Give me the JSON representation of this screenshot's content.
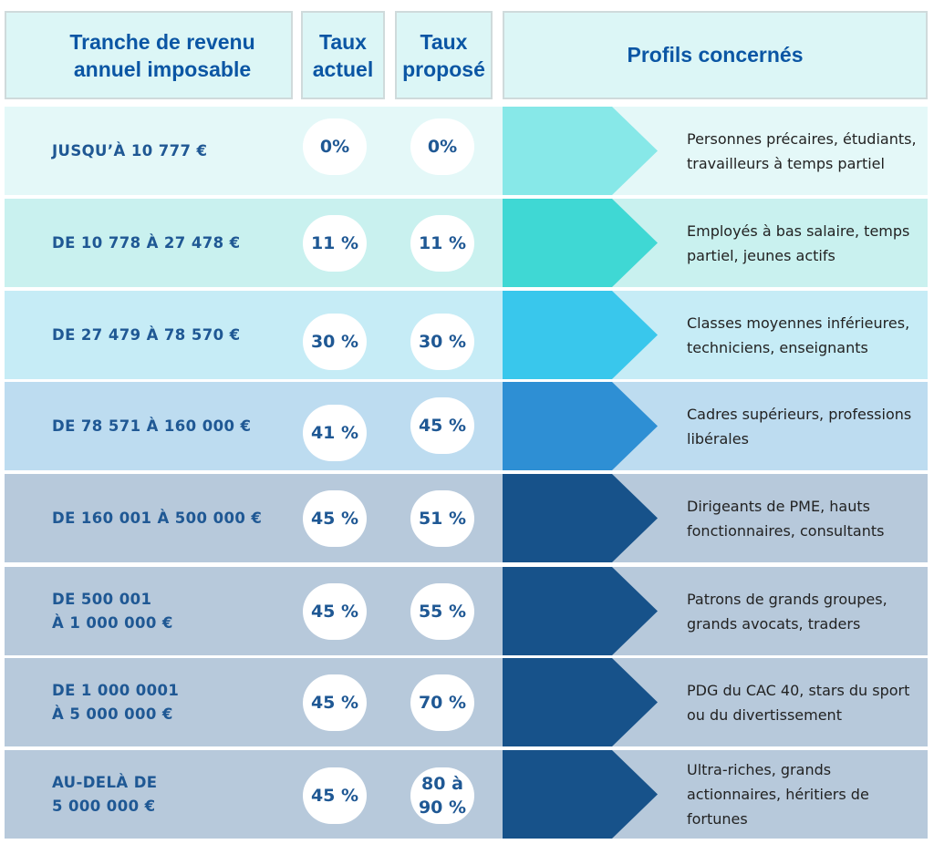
{
  "header": {
    "tranche": "Tranche de revenu\nannuel imposable",
    "taux_actuel": "Taux\nactuel",
    "taux_propose": "Taux\nproposé",
    "profils": "Profils concernés"
  },
  "rows": [
    {
      "tranche": "JUSQU’À 10 777 €",
      "actuel": "0%",
      "propose": "0%",
      "profil": "Personnes précaires, étudiants, travailleurs à temps partiel",
      "row_bg": "#e4f8f8",
      "arrow_color": "#87e8e8"
    },
    {
      "tranche": "DE 10 778 À 27 478 €",
      "actuel": "11 %",
      "propose": "11 %",
      "profil": "Employés à bas salaire, temps partiel, jeunes actifs",
      "row_bg": "#c9f1ef",
      "arrow_color": "#3fd8d4"
    },
    {
      "tranche": "DE 27 479 À 78 570 €",
      "actuel": "30 %",
      "propose": "30 %",
      "profil": "Classes moyennes inférieures, techniciens, enseignants",
      "row_bg": "#c6ecf6",
      "arrow_color": "#39c7ec"
    },
    {
      "tranche": "DE 78 571 À 160 000 €",
      "actuel": "41 %",
      "propose": "45 %",
      "profil": "Cadres supérieurs, professions libérales",
      "row_bg": "#bddcf0",
      "arrow_color": "#2e8fd4"
    },
    {
      "tranche": "DE 160 001 À 500 000 €",
      "actuel": "45 %",
      "propose": "51 %",
      "profil": "Dirigeants de PME, hauts fonctionnaires, consultants",
      "row_bg": "#b7c9db",
      "arrow_color": "#17528a"
    },
    {
      "tranche": "DE 500 001\nÀ 1 000 000 €",
      "actuel": "45 %",
      "propose": "55 %",
      "profil": "Patrons de grands groupes, grands avocats, traders",
      "row_bg": "#b7c9db",
      "arrow_color": "#17528a"
    },
    {
      "tranche": "DE 1 000 0001\nÀ 5 000 000 €",
      "actuel": "45 %",
      "propose": "70 %",
      "profil": "PDG du CAC 40, stars du sport ou du divertissement",
      "row_bg": "#b7c9db",
      "arrow_color": "#17528a"
    },
    {
      "tranche": "AU-DELÀ DE\n5 000 000 €",
      "actuel": "45 %",
      "propose": "80 à\n90 %",
      "profil": "Ultra-riches, grands actionnaires, héritiers de fortunes",
      "row_bg": "#b7c9db",
      "arrow_color": "#17528a"
    }
  ]
}
